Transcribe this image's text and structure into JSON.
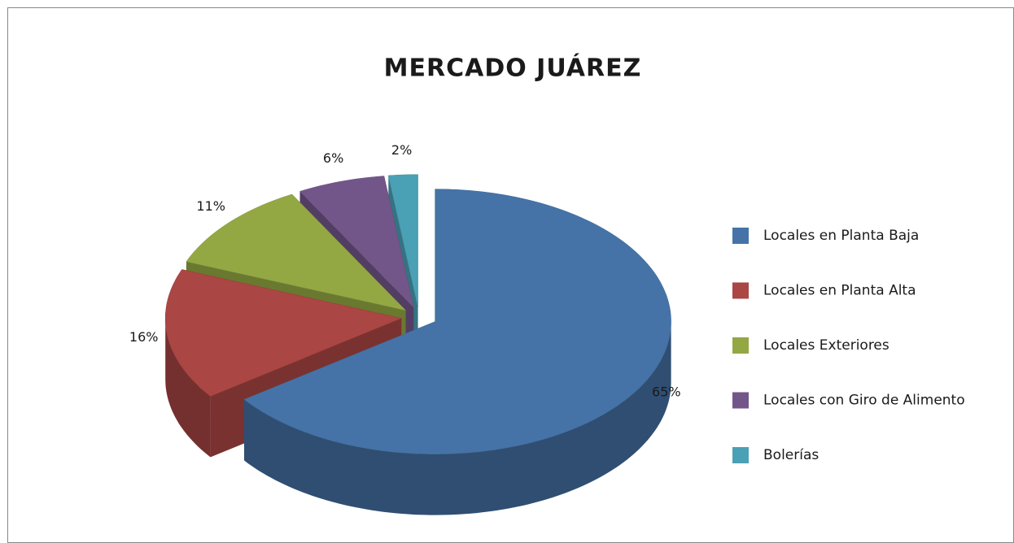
{
  "chart_data": {
    "type": "pie",
    "title": "MERCADO JUÁREZ",
    "categories": [
      "Locales en Planta Baja",
      "Locales en Planta Alta",
      "Locales Exteriores",
      "Locales con Giro de Alimento",
      "Bolerías"
    ],
    "values": [
      65,
      16,
      11,
      6,
      2
    ],
    "value_labels": [
      "65%",
      "16%",
      "11%",
      "6%",
      "2%"
    ],
    "colors": [
      "#4573a7",
      "#aa4643",
      "#93a843",
      "#735689",
      "#4aa0b5"
    ],
    "legend": "right"
  }
}
